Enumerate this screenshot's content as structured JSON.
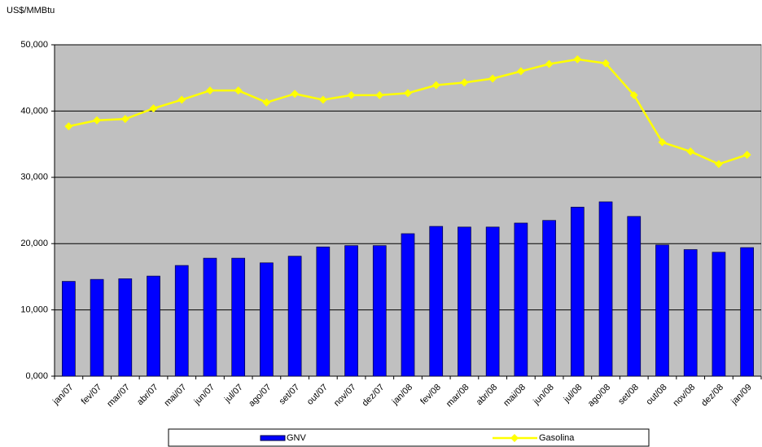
{
  "chart_data": {
    "type": "bar-line",
    "y_label": "US$/MMBtu",
    "categories": [
      "jan/07",
      "fev/07",
      "mar/07",
      "abr/07",
      "mai/07",
      "jun/07",
      "jul/07",
      "ago/07",
      "set/07",
      "out/07",
      "nov/07",
      "dez/07",
      "jan/08",
      "fev/08",
      "mar/08",
      "abr/08",
      "mai/08",
      "jun/08",
      "jul/08",
      "ago/08",
      "set/08",
      "out/08",
      "nov/08",
      "dez/08",
      "jan/09"
    ],
    "series": [
      {
        "name": "GNV",
        "type": "bar",
        "color": "#0000ff",
        "values": [
          14300,
          14600,
          14700,
          15100,
          16700,
          17800,
          17800,
          17100,
          18100,
          19500,
          19700,
          19700,
          21500,
          22600,
          22500,
          22500,
          23100,
          23500,
          25500,
          26300,
          24100,
          19800,
          19100,
          18700,
          19400
        ]
      },
      {
        "name": "Gasolina",
        "type": "line",
        "color": "#ffff00",
        "values": [
          37700,
          38600,
          38800,
          40400,
          41700,
          43100,
          43100,
          41300,
          42600,
          41700,
          42400,
          42400,
          42700,
          43900,
          44300,
          44900,
          46000,
          47100,
          47800,
          47200,
          42400,
          35300,
          33900,
          32000,
          33400
        ]
      }
    ],
    "ylim": [
      0,
      50000
    ],
    "yticks": [
      {
        "value": 0,
        "label": "0,000"
      },
      {
        "value": 10000,
        "label": "10,000"
      },
      {
        "value": 20000,
        "label": "20,000"
      },
      {
        "value": 30000,
        "label": "30,000"
      },
      {
        "value": 40000,
        "label": "40,000"
      },
      {
        "value": 50000,
        "label": "50,000"
      }
    ],
    "grid": true,
    "plot_background": "#c0c0c0",
    "legend": "bottom"
  }
}
